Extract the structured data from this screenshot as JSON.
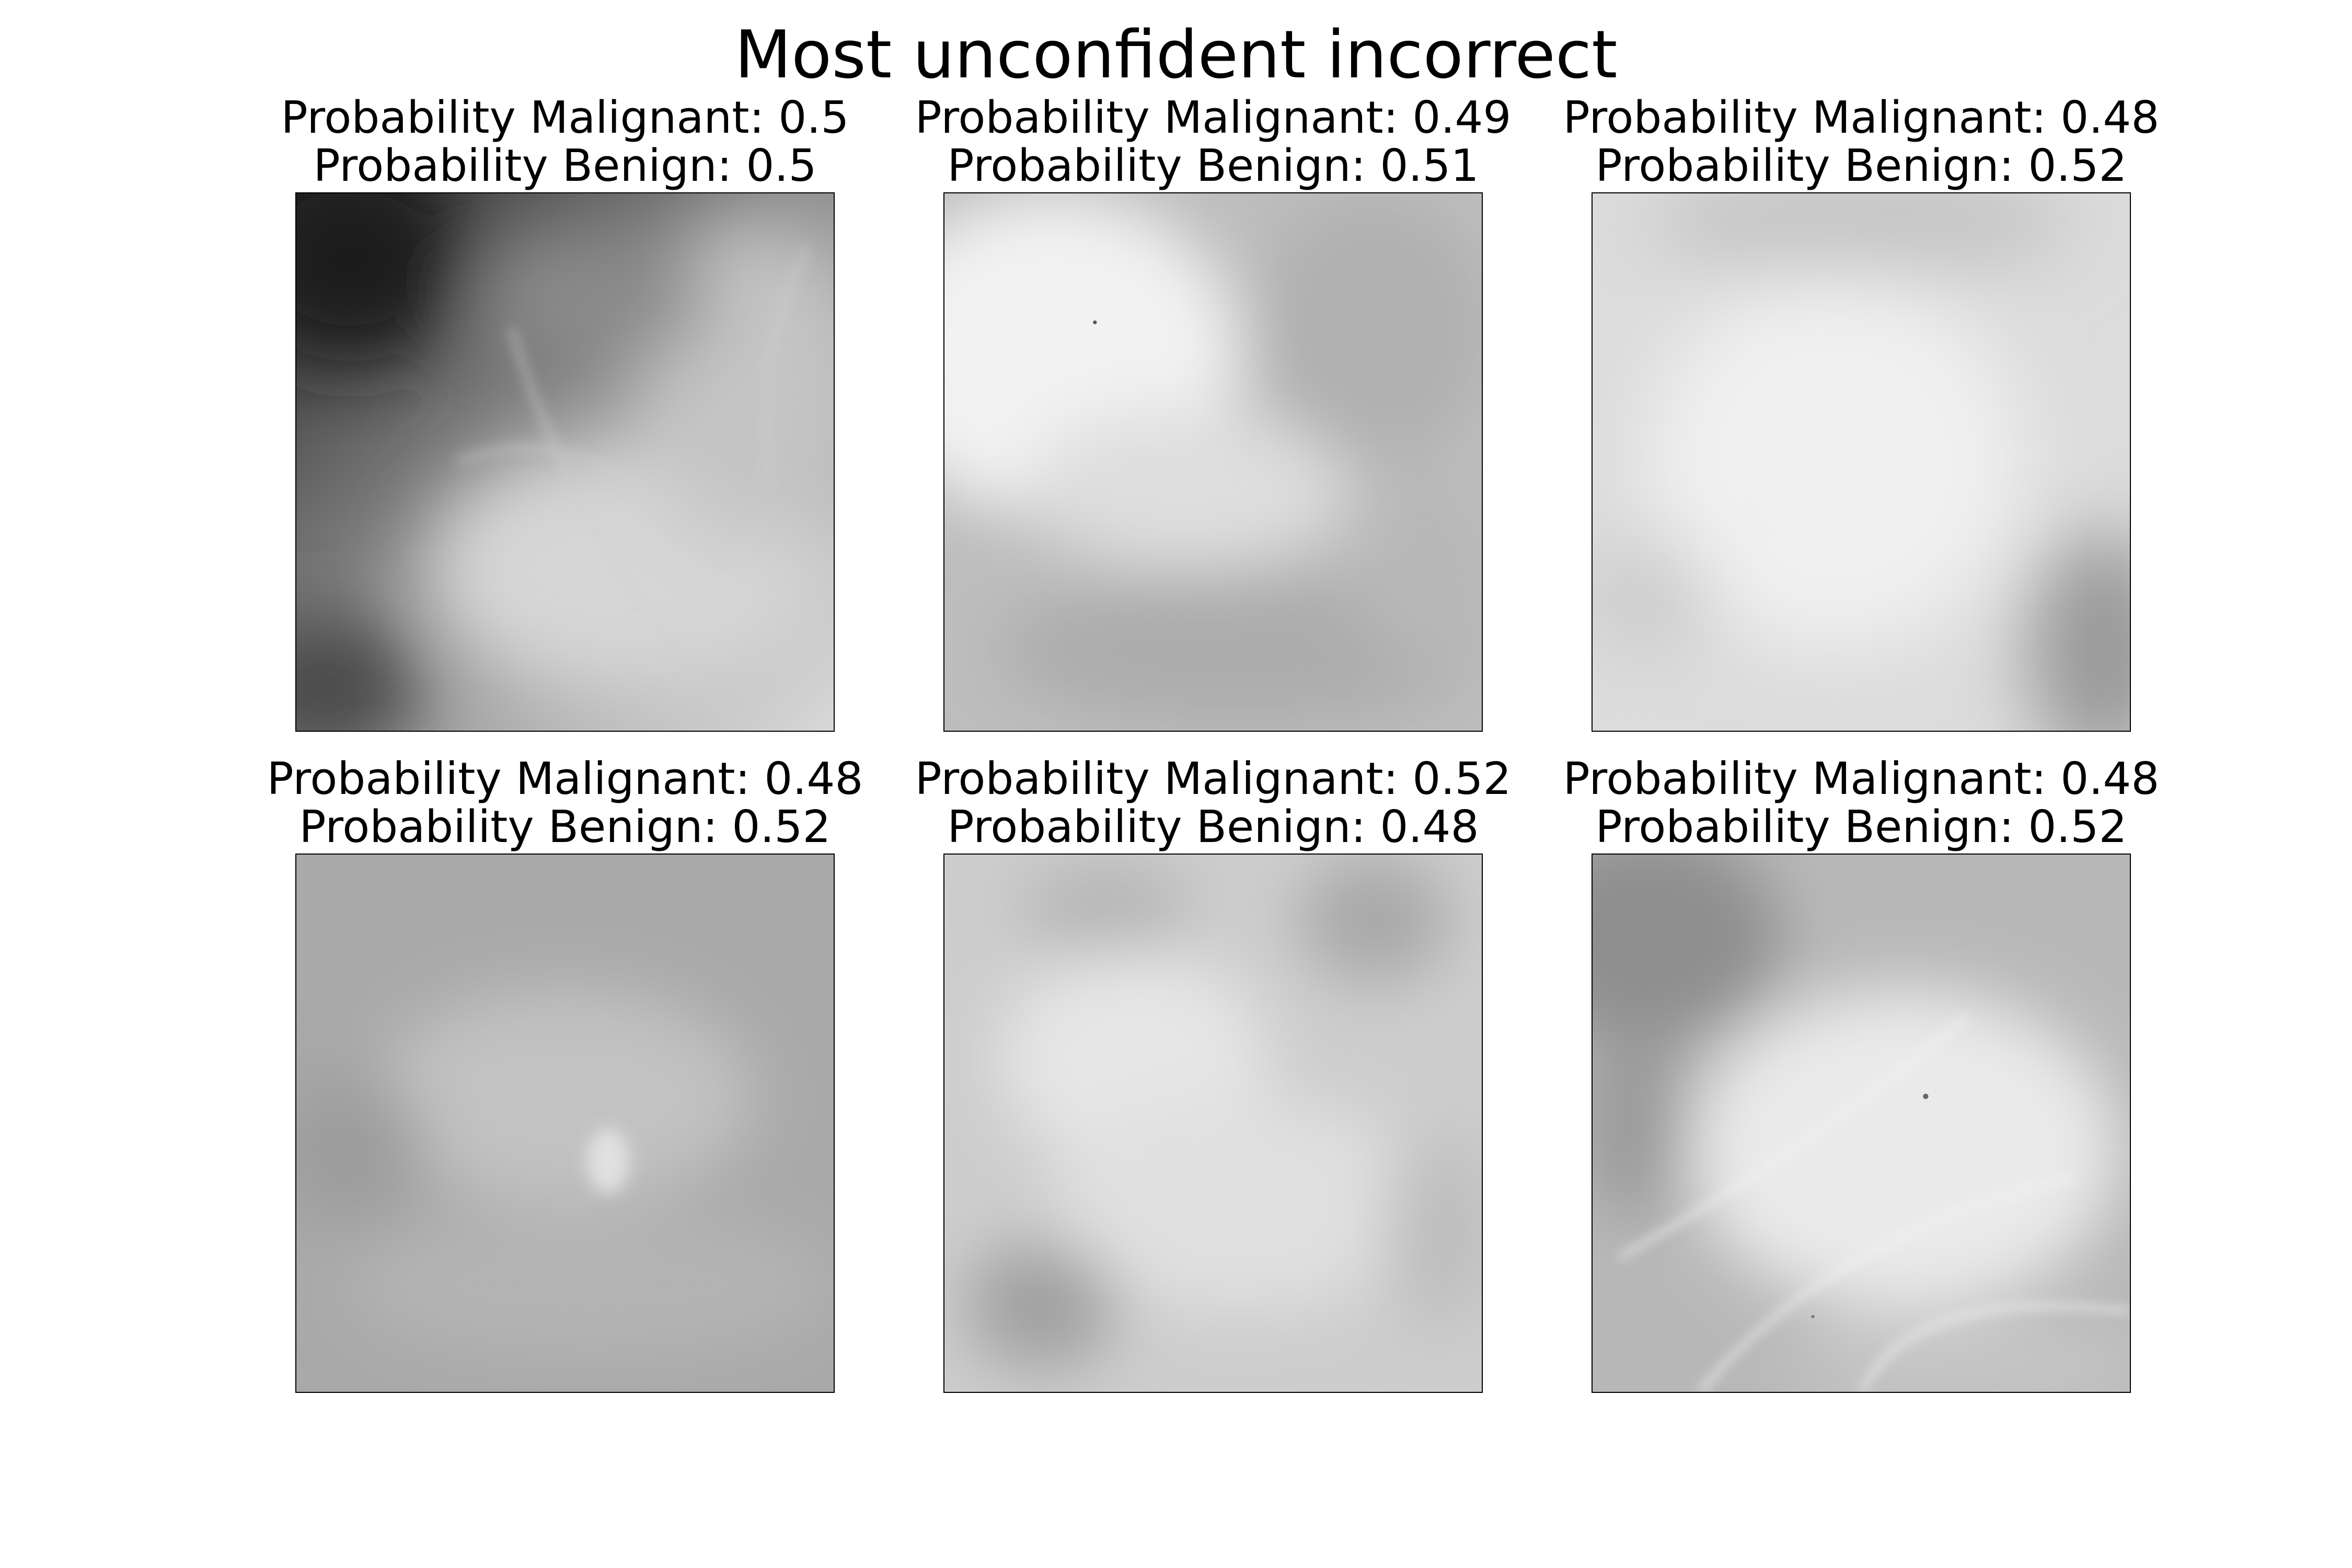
{
  "title": "Most unconfident incorrect",
  "panels": [
    {
      "malignant_label": "Probability Malignant: 0.5",
      "benign_label": "Probability Benign: 0.5"
    },
    {
      "malignant_label": "Probability Malignant: 0.49",
      "benign_label": "Probability Benign: 0.51"
    },
    {
      "malignant_label": "Probability Malignant: 0.48",
      "benign_label": "Probability Benign: 0.52"
    },
    {
      "malignant_label": "Probability Malignant: 0.48",
      "benign_label": "Probability Benign: 0.52"
    },
    {
      "malignant_label": "Probability Malignant: 0.52",
      "benign_label": "Probability Benign: 0.48"
    },
    {
      "malignant_label": "Probability Malignant: 0.48",
      "benign_label": "Probability Benign: 0.52"
    }
  ]
}
